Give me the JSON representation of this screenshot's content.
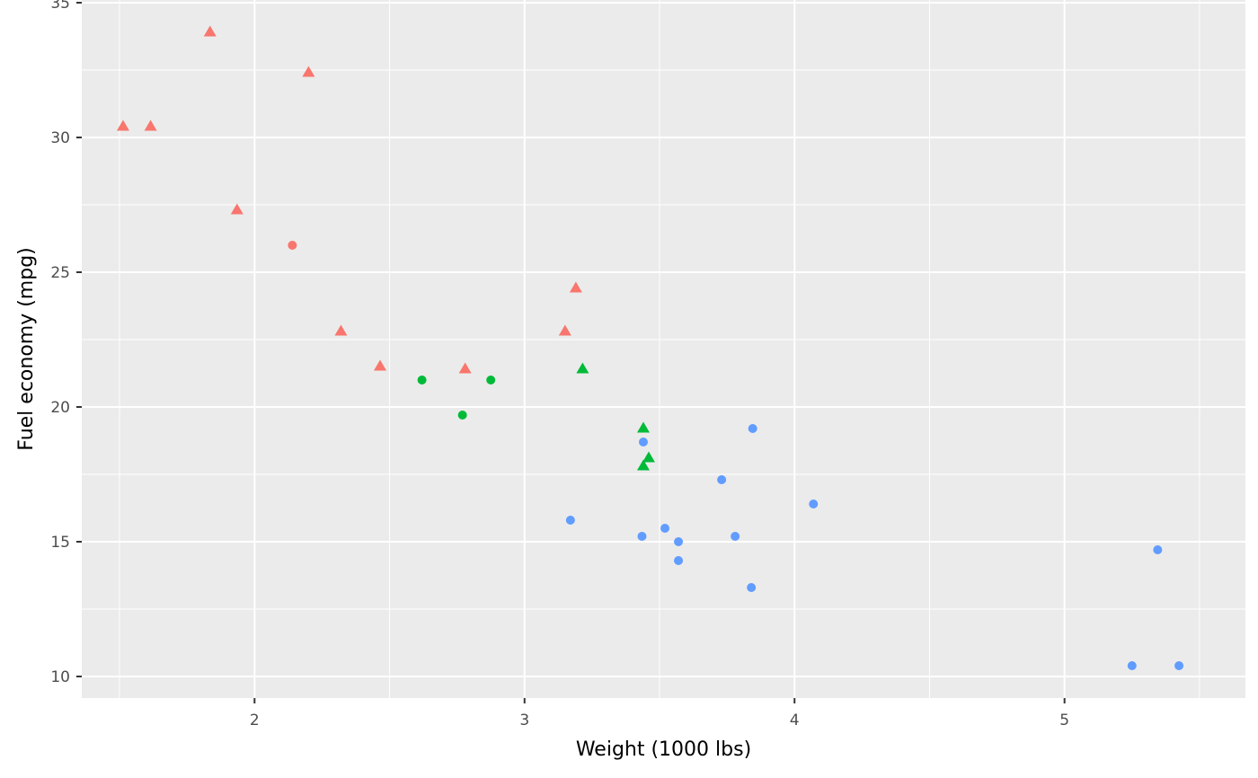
{
  "chart_data": {
    "type": "scatter",
    "title": "",
    "xlabel": "Weight (1000 lbs)",
    "ylabel": "Fuel economy (mpg)",
    "xlim": [
      1.36,
      5.67
    ],
    "ylim": [
      9.2,
      35.1
    ],
    "x_ticks": [
      2,
      3,
      4,
      5
    ],
    "x_tick_labels": [
      "2",
      "3",
      "4",
      "5"
    ],
    "y_ticks": [
      10,
      15,
      20,
      25,
      30,
      35
    ],
    "y_tick_labels": [
      "10",
      "15",
      "20",
      "25",
      "30",
      "35"
    ],
    "grid": true,
    "legend": "none",
    "colors": {
      "panel": "#ebebeb",
      "grid": "#ffffff",
      "red": "#f8766d",
      "green": "#00ba38",
      "blue": "#619cff"
    },
    "points": [
      {
        "x": 1.513,
        "y": 30.4,
        "color": "red",
        "shape": "triangle"
      },
      {
        "x": 1.615,
        "y": 30.4,
        "color": "red",
        "shape": "triangle"
      },
      {
        "x": 1.835,
        "y": 33.9,
        "color": "red",
        "shape": "triangle"
      },
      {
        "x": 1.935,
        "y": 27.3,
        "color": "red",
        "shape": "triangle"
      },
      {
        "x": 2.14,
        "y": 26.0,
        "color": "red",
        "shape": "circle"
      },
      {
        "x": 2.2,
        "y": 32.4,
        "color": "red",
        "shape": "triangle"
      },
      {
        "x": 2.32,
        "y": 22.8,
        "color": "red",
        "shape": "triangle"
      },
      {
        "x": 2.465,
        "y": 21.5,
        "color": "red",
        "shape": "triangle"
      },
      {
        "x": 2.78,
        "y": 21.4,
        "color": "red",
        "shape": "triangle"
      },
      {
        "x": 3.15,
        "y": 22.8,
        "color": "red",
        "shape": "triangle"
      },
      {
        "x": 3.19,
        "y": 24.4,
        "color": "red",
        "shape": "triangle"
      },
      {
        "x": 2.62,
        "y": 21.0,
        "color": "green",
        "shape": "circle"
      },
      {
        "x": 2.77,
        "y": 19.7,
        "color": "green",
        "shape": "circle"
      },
      {
        "x": 2.875,
        "y": 21.0,
        "color": "green",
        "shape": "circle"
      },
      {
        "x": 3.215,
        "y": 21.4,
        "color": "green",
        "shape": "triangle"
      },
      {
        "x": 3.44,
        "y": 19.2,
        "color": "green",
        "shape": "triangle"
      },
      {
        "x": 3.44,
        "y": 17.8,
        "color": "green",
        "shape": "triangle"
      },
      {
        "x": 3.46,
        "y": 18.1,
        "color": "green",
        "shape": "triangle"
      },
      {
        "x": 3.17,
        "y": 15.8,
        "color": "blue",
        "shape": "circle"
      },
      {
        "x": 3.435,
        "y": 15.2,
        "color": "blue",
        "shape": "circle"
      },
      {
        "x": 3.44,
        "y": 18.7,
        "color": "blue",
        "shape": "circle"
      },
      {
        "x": 3.52,
        "y": 15.5,
        "color": "blue",
        "shape": "circle"
      },
      {
        "x": 3.57,
        "y": 15.0,
        "color": "blue",
        "shape": "circle"
      },
      {
        "x": 3.57,
        "y": 14.3,
        "color": "blue",
        "shape": "circle"
      },
      {
        "x": 3.73,
        "y": 17.3,
        "color": "blue",
        "shape": "circle"
      },
      {
        "x": 3.78,
        "y": 15.2,
        "color": "blue",
        "shape": "circle"
      },
      {
        "x": 3.84,
        "y": 13.3,
        "color": "blue",
        "shape": "circle"
      },
      {
        "x": 3.845,
        "y": 19.2,
        "color": "blue",
        "shape": "circle"
      },
      {
        "x": 4.07,
        "y": 16.4,
        "color": "blue",
        "shape": "circle"
      },
      {
        "x": 5.25,
        "y": 10.4,
        "color": "blue",
        "shape": "circle"
      },
      {
        "x": 5.345,
        "y": 14.7,
        "color": "blue",
        "shape": "circle"
      },
      {
        "x": 5.424,
        "y": 10.4,
        "color": "blue",
        "shape": "circle"
      }
    ]
  }
}
